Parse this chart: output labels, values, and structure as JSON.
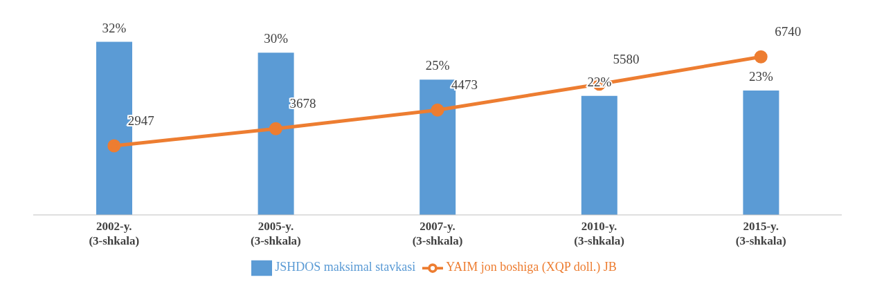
{
  "chart_data": {
    "type": "bar",
    "categories": [
      "2002-y. (3-shkala)",
      "2005-y. (3-shkala)",
      "2007-y. (3-shkala)",
      "2010-y. (3-shkala)",
      "2015-y. (3-shkala)"
    ],
    "series": [
      {
        "name": "JSHDOS maksimal stavkasi",
        "color": "#5b9bd5",
        "values": [
          32,
          30,
          25,
          22,
          23
        ],
        "value_labels": [
          "32%",
          "30%",
          "25%",
          "22%",
          "23%"
        ]
      },
      {
        "name": "YAIM jon boshiga (XQP doll.) JB",
        "type": "line",
        "axis": "y2",
        "color": "#ed7d31",
        "marker": "circle",
        "values": [
          2947,
          3678,
          4473,
          5580,
          6740
        ]
      }
    ],
    "data_labels": true,
    "legend": "bottom"
  }
}
